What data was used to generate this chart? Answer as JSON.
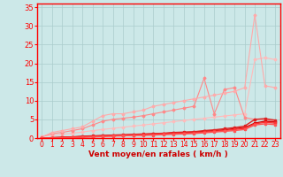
{
  "xlabel": "Vent moyen/en rafales ( km/h )",
  "xlim": [
    -0.5,
    23.5
  ],
  "ylim": [
    0,
    36
  ],
  "yticks": [
    0,
    5,
    10,
    15,
    20,
    25,
    30,
    35
  ],
  "xticks": [
    0,
    1,
    2,
    3,
    4,
    5,
    6,
    7,
    8,
    9,
    10,
    11,
    12,
    13,
    14,
    15,
    16,
    17,
    18,
    19,
    20,
    21,
    22,
    23
  ],
  "bg_color": "#cce8e8",
  "grid_color": "#aacccc",
  "lines": [
    {
      "x": [
        0,
        1,
        2,
        3,
        4,
        5,
        6,
        7,
        8,
        9,
        10,
        11,
        12,
        13,
        14,
        15,
        16,
        17,
        18,
        19,
        20,
        21,
        22,
        23
      ],
      "y": [
        0.5,
        0.8,
        1.0,
        1.3,
        1.6,
        2.0,
        2.3,
        2.6,
        2.9,
        3.2,
        3.5,
        3.8,
        4.1,
        4.4,
        4.7,
        5.0,
        5.3,
        5.6,
        5.9,
        6.2,
        6.5,
        21.0,
        21.5,
        21.0
      ],
      "color": "#ffbbbb",
      "lw": 0.8,
      "marker": "D",
      "ms": 1.5
    },
    {
      "x": [
        0,
        1,
        2,
        3,
        4,
        5,
        6,
        7,
        8,
        9,
        10,
        11,
        12,
        13,
        14,
        15,
        16,
        17,
        18,
        19,
        20,
        21,
        22,
        23
      ],
      "y": [
        0.3,
        1.2,
        1.5,
        2.0,
        2.5,
        3.5,
        4.5,
        5.0,
        5.3,
        5.6,
        6.0,
        6.5,
        7.0,
        7.5,
        8.0,
        8.5,
        16.0,
        6.5,
        13.0,
        13.5,
        5.5,
        5.0,
        5.0,
        4.5
      ],
      "color": "#ff8888",
      "lw": 0.8,
      "marker": "D",
      "ms": 1.5
    },
    {
      "x": [
        0,
        1,
        2,
        3,
        4,
        5,
        6,
        7,
        8,
        9,
        10,
        11,
        12,
        13,
        14,
        15,
        16,
        17,
        18,
        19,
        20,
        21,
        22,
        23
      ],
      "y": [
        0.3,
        1.5,
        2.0,
        2.5,
        3.0,
        4.5,
        6.0,
        6.5,
        6.5,
        7.0,
        7.5,
        8.5,
        9.0,
        9.5,
        10.0,
        10.5,
        11.0,
        11.5,
        12.0,
        12.5,
        13.5,
        33.0,
        14.0,
        13.5
      ],
      "color": "#ffaaaa",
      "lw": 0.8,
      "marker": "D",
      "ms": 1.5
    },
    {
      "x": [
        0,
        1,
        2,
        3,
        4,
        5,
        6,
        7,
        8,
        9,
        10,
        11,
        12,
        13,
        14,
        15,
        16,
        17,
        18,
        19,
        20,
        21,
        22,
        23
      ],
      "y": [
        0.0,
        0.1,
        0.2,
        0.3,
        0.4,
        0.5,
        0.6,
        0.7,
        0.8,
        0.9,
        1.0,
        1.1,
        1.2,
        1.4,
        1.5,
        1.6,
        1.8,
        2.0,
        2.2,
        2.5,
        2.8,
        4.0,
        4.5,
        4.3
      ],
      "color": "#cc0000",
      "lw": 1.0,
      "marker": "s",
      "ms": 1.5
    },
    {
      "x": [
        0,
        1,
        2,
        3,
        4,
        5,
        6,
        7,
        8,
        9,
        10,
        11,
        12,
        13,
        14,
        15,
        16,
        17,
        18,
        19,
        20,
        21,
        22,
        23
      ],
      "y": [
        0.0,
        0.1,
        0.2,
        0.3,
        0.5,
        0.6,
        0.7,
        0.8,
        0.9,
        1.0,
        1.1,
        1.2,
        1.3,
        1.5,
        1.6,
        1.7,
        2.0,
        2.2,
        2.5,
        2.8,
        3.2,
        5.0,
        5.2,
        4.8
      ],
      "color": "#dd2222",
      "lw": 1.0,
      "marker": "s",
      "ms": 1.5
    },
    {
      "x": [
        0,
        1,
        2,
        3,
        4,
        5,
        6,
        7,
        8,
        9,
        10,
        11,
        12,
        13,
        14,
        15,
        16,
        17,
        18,
        19,
        20,
        21,
        22,
        23
      ],
      "y": [
        0.0,
        0.0,
        0.1,
        0.2,
        0.3,
        0.4,
        0.5,
        0.6,
        0.7,
        0.8,
        0.9,
        1.0,
        1.1,
        1.2,
        1.3,
        1.4,
        1.6,
        1.8,
        2.0,
        2.3,
        2.6,
        3.8,
        4.2,
        4.0
      ],
      "color": "#ff3333",
      "lw": 1.0,
      "marker": "s",
      "ms": 1.5
    },
    {
      "x": [
        0,
        1,
        2,
        3,
        4,
        5,
        6,
        7,
        8,
        9,
        10,
        11,
        12,
        13,
        14,
        15,
        16,
        17,
        18,
        19,
        20,
        21,
        22,
        23
      ],
      "y": [
        0.0,
        0.0,
        0.1,
        0.1,
        0.2,
        0.3,
        0.4,
        0.5,
        0.6,
        0.7,
        0.7,
        0.8,
        0.9,
        1.0,
        1.1,
        1.2,
        1.4,
        1.6,
        1.8,
        2.0,
        2.3,
        3.5,
        3.8,
        3.6
      ],
      "color": "#ff5555",
      "lw": 1.0,
      "marker": "s",
      "ms": 1.5
    }
  ],
  "axis_color": "#ff0000",
  "tick_color": "#ff0000",
  "label_color": "#cc0000",
  "xlabel_fontsize": 6.5,
  "ytick_fontsize": 6,
  "xtick_fontsize": 5.5
}
